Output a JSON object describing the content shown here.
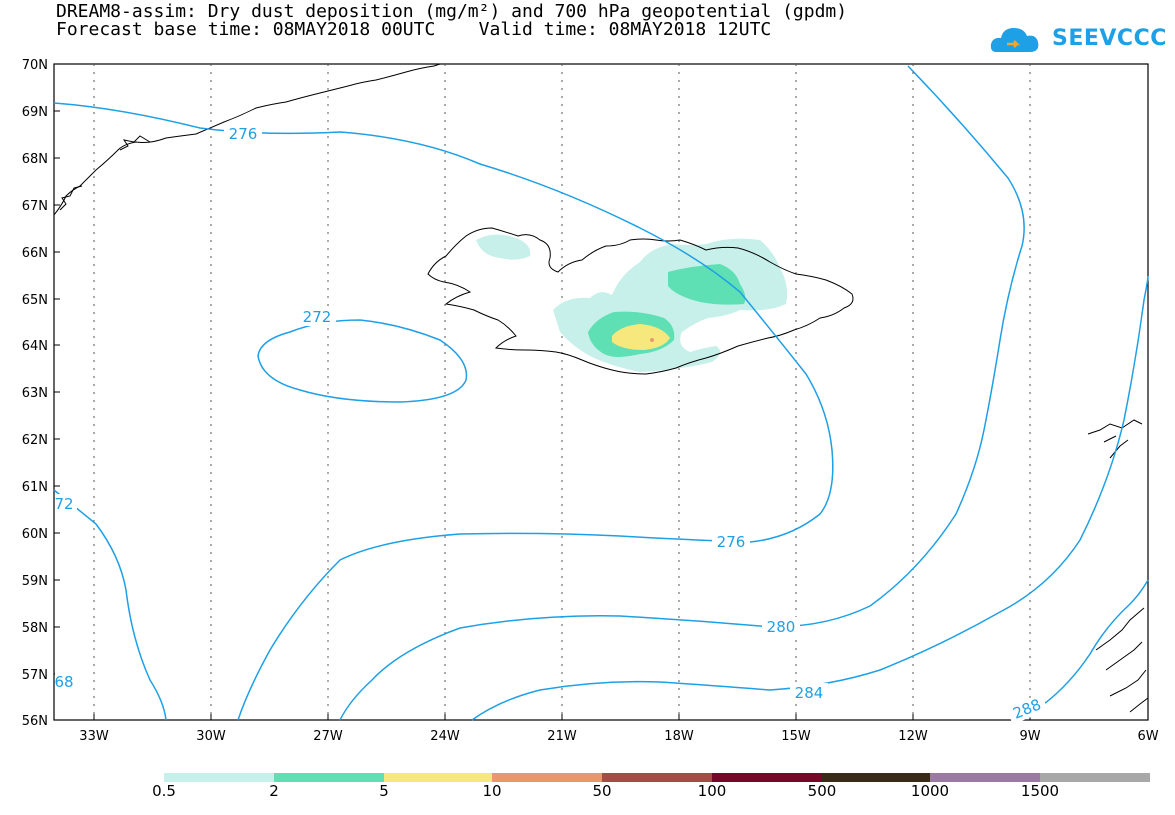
{
  "title_line1": "DREAM8-assim: Dry dust deposition (mg/m²) and 700 hPa geopotential (gpdm)",
  "title_line2": "Forecast base time: 08MAY2018 00UTC    Valid time: 08MAY2018 12UTC",
  "logo_text": "SEEVCCC",
  "lat_labels": [
    "70N",
    "69N",
    "68N",
    "67N",
    "66N",
    "65N",
    "64N",
    "63N",
    "62N",
    "61N",
    "60N",
    "59N",
    "58N",
    "57N",
    "56N"
  ],
  "lon_labels": [
    "33W",
    "30W",
    "27W",
    "24W",
    "21W",
    "18W",
    "15W",
    "12W",
    "9W",
    "6W"
  ],
  "contour_labels": [
    "276",
    "272",
    "276",
    "280",
    "284",
    "288",
    "72",
    "68"
  ],
  "legend": {
    "labels": [
      "0.5",
      "2",
      "5",
      "10",
      "50",
      "100",
      "500",
      "1000",
      "1500"
    ],
    "colors": [
      "#c8f0ea",
      "#5ee0b4",
      "#f6e87c",
      "#ec9670",
      "#a64b45",
      "#780628",
      "#3a2a18",
      "#9a7aa2",
      "#a8a8a8"
    ]
  },
  "map": {
    "lon_range": [
      "34.4W",
      "6W"
    ],
    "lat_range": [
      "56N",
      "70N"
    ],
    "isoline_color": "#1ea0e6",
    "coast_color": "#000000"
  }
}
